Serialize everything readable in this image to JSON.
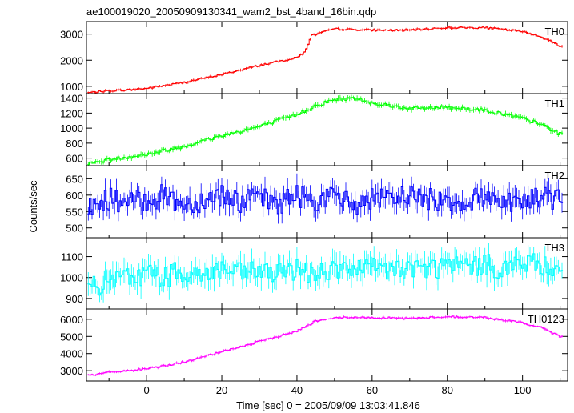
{
  "title": "ae100019020_20050909130341_wam2_bst_4band_16bin.qdp",
  "xlabel": "Time [sec] 0 = 2005/09/09 13:03:41.846",
  "ylabel": "Counts/sec",
  "chart_data": [
    {
      "type": "line",
      "name": "TH0",
      "color": "#ff0000",
      "xlim": [
        -16,
        112
      ],
      "ylim": [
        720,
        3480
      ],
      "yticks": [
        1000,
        2000,
        3000
      ],
      "x": [
        -16,
        -10,
        -5,
        0,
        10,
        20,
        30,
        40,
        42,
        44,
        50,
        60,
        70,
        80,
        90,
        100,
        105,
        110
      ],
      "y": [
        750,
        830,
        860,
        920,
        1150,
        1450,
        1800,
        2100,
        2300,
        2950,
        3200,
        3150,
        3150,
        3250,
        3250,
        3100,
        2900,
        2550
      ]
    },
    {
      "type": "line",
      "name": "TH1",
      "color": "#00ff00",
      "xlim": [
        -16,
        112
      ],
      "ylim": [
        500,
        1460
      ],
      "yticks": [
        600,
        800,
        1000,
        1200,
        1400
      ],
      "x": [
        -16,
        -10,
        0,
        10,
        20,
        30,
        40,
        45,
        50,
        55,
        60,
        70,
        80,
        90,
        100,
        105,
        110
      ],
      "y": [
        520,
        580,
        650,
        760,
        900,
        1020,
        1180,
        1300,
        1380,
        1400,
        1340,
        1260,
        1280,
        1240,
        1130,
        1050,
        920
      ]
    },
    {
      "type": "line",
      "name": "TH2",
      "color": "#0000ff",
      "xlim": [
        -16,
        112
      ],
      "ylim": [
        470,
        690
      ],
      "yticks": [
        500,
        550,
        600,
        650
      ],
      "x": [
        -16,
        -10,
        -5,
        0,
        5,
        10,
        15,
        20,
        25,
        30,
        35,
        40,
        45,
        50,
        55,
        60,
        65,
        70,
        75,
        80,
        85,
        90,
        95,
        100,
        105,
        110
      ],
      "y": [
        560,
        590,
        575,
        585,
        600,
        570,
        585,
        605,
        580,
        590,
        575,
        600,
        585,
        595,
        570,
        590,
        580,
        605,
        585,
        590,
        575,
        600,
        585,
        580,
        595,
        590
      ]
    },
    {
      "type": "line",
      "name": "TH3",
      "color": "#00ffff",
      "xlim": [
        -16,
        112
      ],
      "ylim": [
        850,
        1190
      ],
      "yticks": [
        900,
        1000,
        1100
      ],
      "x": [
        -16,
        -10,
        -5,
        0,
        5,
        10,
        15,
        20,
        25,
        30,
        35,
        40,
        45,
        50,
        55,
        60,
        65,
        70,
        75,
        80,
        85,
        90,
        95,
        100,
        105,
        110
      ],
      "y": [
        940,
        985,
        1000,
        1020,
        1005,
        1030,
        1010,
        1040,
        1015,
        1035,
        1010,
        1045,
        1020,
        1040,
        1030,
        1045,
        1035,
        1050,
        1040,
        1060,
        1050,
        1060,
        1045,
        1070,
        1055,
        1060
      ]
    },
    {
      "type": "line",
      "name": "TH0123",
      "color": "#ff00ff",
      "xlim": [
        -16,
        112
      ],
      "ylim": [
        2400,
        6600
      ],
      "yticks": [
        3000,
        4000,
        5000,
        6000
      ],
      "xticks": [
        0,
        20,
        40,
        60,
        80,
        100
      ],
      "x": [
        -16,
        -10,
        -5,
        0,
        10,
        20,
        30,
        40,
        45,
        50,
        60,
        70,
        80,
        90,
        100,
        105,
        110
      ],
      "y": [
        2700,
        2900,
        3000,
        3100,
        3500,
        4100,
        4700,
        5300,
        5900,
        6100,
        6100,
        6050,
        6150,
        6100,
        5800,
        5500,
        5000
      ]
    }
  ]
}
